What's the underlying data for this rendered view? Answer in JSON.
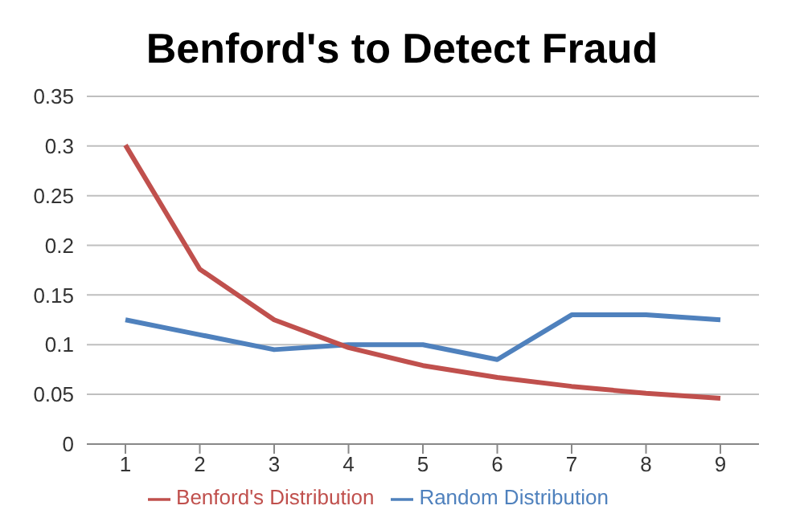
{
  "chart_data": {
    "type": "line",
    "title": "Benford's to Detect Fraud",
    "categories": [
      "1",
      "2",
      "3",
      "4",
      "5",
      "6",
      "7",
      "8",
      "9"
    ],
    "series": [
      {
        "name": "Random Distribution",
        "color": "#4f81bd",
        "values": [
          0.125,
          0.11,
          0.095,
          0.1,
          0.1,
          0.085,
          0.13,
          0.13,
          0.125
        ]
      },
      {
        "name": "Benford's Distribution",
        "color": "#c0504d",
        "values": [
          0.301,
          0.176,
          0.125,
          0.097,
          0.079,
          0.067,
          0.058,
          0.051,
          0.046
        ]
      }
    ],
    "ylim": [
      0,
      0.35
    ],
    "yticks": [
      0,
      0.05,
      0.1,
      0.15,
      0.2,
      0.25,
      0.3,
      0.35
    ],
    "grid": "y",
    "legend": "bottom",
    "marker": "none",
    "line_style": "solid"
  }
}
